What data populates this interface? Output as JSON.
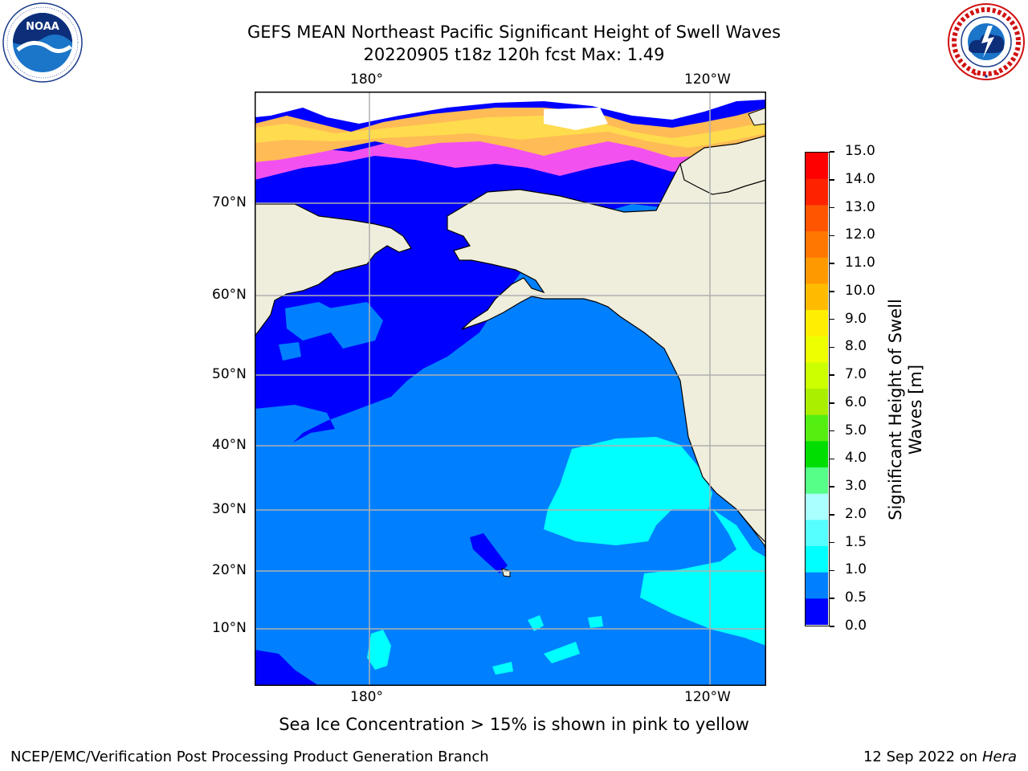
{
  "title": {
    "line1": "GEFS MEAN Northeast Pacific Significant Height of Swell Waves",
    "line2": "20220905 t18z 120h fcst   Max: 1.49"
  },
  "logos": {
    "noaa_text": "NOAA",
    "noaa_ring": "NATIONAL OCEANIC AND ATMOSPHERIC ADMINISTRATION · U.S. DEPARTMENT OF COMMERCE",
    "nws_ring": "NATIONAL WEATHER SERVICE"
  },
  "map": {
    "lon_labels_top": [
      "180°",
      "120°W"
    ],
    "lon_labels_bottom": [
      "180°",
      "120°W"
    ],
    "lat_labels": [
      "70°N",
      "60°N",
      "50°N",
      "40°N",
      "30°N",
      "20°N",
      "10°N"
    ],
    "max_value": 1.49,
    "colors": {
      "land": "#efeddc",
      "ice_free_white": "#ffffff",
      "band_0_0.5": "#0000ff",
      "band_0.5_1.0": "#0080ff",
      "band_1.0_1.5": "#00ffff",
      "sea_ice_pink": "#ff55ee",
      "sea_ice_orange": "#ffbb55",
      "sea_ice_yellow": "#ffe14d",
      "grid": "#b0b0b0"
    }
  },
  "colorbar": {
    "label": "Significant Height of Swell Waves [m]",
    "label_line1": "Significant Height of Swell",
    "label_line2": "Waves [m]",
    "ticks": [
      "15.0",
      "14.0",
      "13.0",
      "12.0",
      "11.0",
      "10.0",
      "9.0",
      "8.0",
      "7.0",
      "6.0",
      "5.0",
      "4.0",
      "3.0",
      "2.0",
      "1.5",
      "1.0",
      "0.5",
      "0.0"
    ],
    "colors_top_to_bottom": [
      "#ff0000",
      "#ff2200",
      "#ff5500",
      "#ff7700",
      "#ff9900",
      "#ffbb00",
      "#ffee00",
      "#eeff00",
      "#ccff00",
      "#aaee00",
      "#55ee11",
      "#00dd00",
      "#55ff88",
      "#aaffff",
      "#55ffff",
      "#00ffff",
      "#0080ff",
      "#0000ff"
    ]
  },
  "note": "Sea Ice Concentration > 15% is shown in pink to yellow",
  "footer": {
    "left": "NCEP/EMC/Verification Post Processing Product Generation Branch",
    "right_date": "12 Sep 2022 on",
    "right_host": "Hera"
  }
}
